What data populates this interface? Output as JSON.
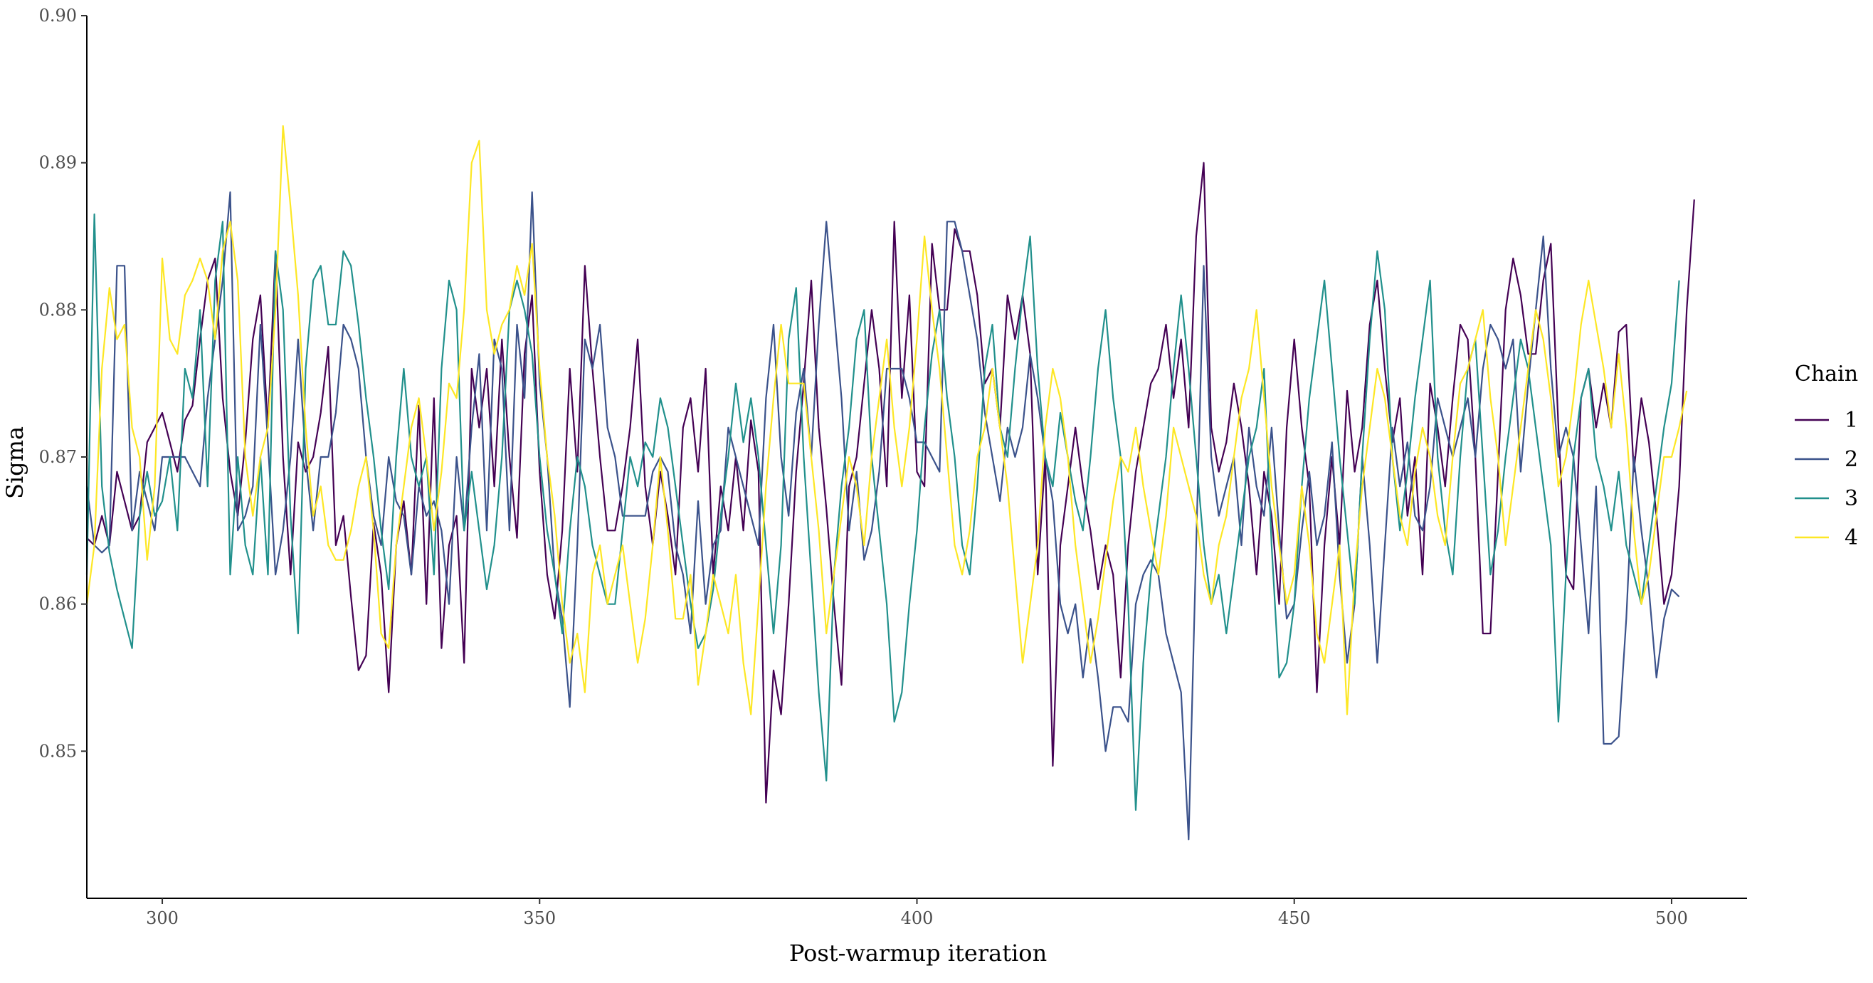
{
  "chart_data": {
    "type": "line",
    "title": "",
    "xlabel": "Post-warmup iteration",
    "ylabel": "Sigma",
    "xlim": [
      290,
      510
    ],
    "ylim": [
      0.84,
      0.9
    ],
    "x_ticks": [
      300,
      350,
      400,
      450,
      500
    ],
    "y_ticks": [
      0.85,
      0.86,
      0.87,
      0.88,
      0.89,
      0.9
    ],
    "x_tick_labels": [
      "300",
      "350",
      "400",
      "450",
      "500"
    ],
    "y_tick_labels": [
      "0.85",
      "0.86",
      "0.87",
      "0.88",
      "0.89",
      "0.90"
    ],
    "grid": false,
    "legend": {
      "title": "Chain",
      "position": "right"
    },
    "x": {
      "start": 290,
      "end": 500
    },
    "series": [
      {
        "name": "1",
        "color": "#440154",
        "values": [
          0.8645,
          0.864,
          0.866,
          0.864,
          0.869,
          0.867,
          0.865,
          0.866,
          0.871,
          0.872,
          0.873,
          0.871,
          0.869,
          0.8725,
          0.8735,
          0.878,
          0.882,
          0.8835,
          0.874,
          0.869,
          0.866,
          0.871,
          0.878,
          0.881,
          0.872,
          0.884,
          0.87,
          0.862,
          0.871,
          0.869,
          0.87,
          0.873,
          0.8775,
          0.864,
          0.866,
          0.8605,
          0.8555,
          0.8565,
          0.8655,
          0.862,
          0.854,
          0.864,
          0.867,
          0.862,
          0.8735,
          0.86,
          0.874,
          0.857,
          0.864,
          0.866,
          0.856,
          0.876,
          0.872,
          0.876,
          0.868,
          0.878,
          0.87,
          0.8645,
          0.877,
          0.881,
          0.869,
          0.862,
          0.859,
          0.865,
          0.876,
          0.869,
          0.883,
          0.876,
          0.87,
          0.865,
          0.865,
          0.868,
          0.872,
          0.878,
          0.868,
          0.864,
          0.869,
          0.866,
          0.862,
          0.872,
          0.874,
          0.869,
          0.876,
          0.862,
          0.868,
          0.865,
          0.87,
          0.865,
          0.8725,
          0.869,
          0.8465,
          0.8555,
          0.8525,
          0.86,
          0.869,
          0.875,
          0.882,
          0.872,
          0.8665,
          0.86,
          0.8545,
          0.868,
          0.87,
          0.875,
          0.88,
          0.876,
          0.868,
          0.886,
          0.874,
          0.881,
          0.869,
          0.868,
          0.8845,
          0.88,
          0.88,
          0.8855,
          0.884,
          0.884,
          0.881,
          0.875,
          0.876,
          0.872,
          0.881,
          0.878,
          0.881,
          0.877,
          0.862,
          0.87,
          0.849,
          0.864,
          0.868,
          0.872,
          0.868,
          0.865,
          0.861,
          0.864,
          0.862,
          0.855,
          0.864,
          0.869,
          0.872,
          0.875,
          0.876,
          0.879,
          0.874,
          0.878,
          0.872,
          0.885,
          0.89,
          0.872,
          0.869,
          0.871,
          0.875,
          0.872,
          0.868,
          0.862,
          0.869,
          0.866,
          0.86,
          0.872,
          0.878,
          0.872,
          0.868,
          0.854,
          0.864,
          0.87,
          0.864,
          0.8745,
          0.869,
          0.872,
          0.879,
          0.882,
          0.876,
          0.871,
          0.874,
          0.866,
          0.87,
          0.862,
          0.875,
          0.872,
          0.868,
          0.874,
          0.879,
          0.878,
          0.87,
          0.858,
          0.858,
          0.869,
          0.88,
          0.8835,
          0.881,
          0.877,
          0.877,
          0.882,
          0.8845,
          0.872,
          0.862,
          0.861,
          0.874,
          0.876,
          0.872,
          0.875,
          0.872,
          0.8785,
          0.879,
          0.869,
          0.874,
          0.871,
          0.866,
          0.86,
          0.862,
          0.868,
          0.88,
          0.8875
        ]
      },
      {
        "name": "2",
        "color": "#3b528b",
        "values": [
          0.868,
          0.864,
          0.8635,
          0.864,
          0.883,
          0.883,
          0.865,
          0.869,
          0.867,
          0.865,
          0.87,
          0.87,
          0.87,
          0.87,
          0.869,
          0.868,
          0.874,
          0.878,
          0.882,
          0.888,
          0.865,
          0.866,
          0.868,
          0.879,
          0.871,
          0.862,
          0.865,
          0.87,
          0.878,
          0.87,
          0.865,
          0.87,
          0.87,
          0.873,
          0.879,
          0.878,
          0.876,
          0.87,
          0.866,
          0.864,
          0.87,
          0.867,
          0.866,
          0.862,
          0.868,
          0.866,
          0.867,
          0.865,
          0.86,
          0.87,
          0.865,
          0.872,
          0.877,
          0.865,
          0.878,
          0.876,
          0.865,
          0.879,
          0.874,
          0.888,
          0.875,
          0.87,
          0.862,
          0.859,
          0.853,
          0.864,
          0.878,
          0.876,
          0.879,
          0.872,
          0.87,
          0.866,
          0.866,
          0.866,
          0.866,
          0.869,
          0.87,
          0.869,
          0.864,
          0.862,
          0.858,
          0.867,
          0.86,
          0.864,
          0.865,
          0.872,
          0.87,
          0.868,
          0.866,
          0.864,
          0.874,
          0.879,
          0.87,
          0.866,
          0.873,
          0.876,
          0.87,
          0.879,
          0.886,
          0.88,
          0.874,
          0.865,
          0.869,
          0.863,
          0.865,
          0.869,
          0.876,
          0.876,
          0.876,
          0.874,
          0.871,
          0.871,
          0.87,
          0.869,
          0.886,
          0.886,
          0.884,
          0.881,
          0.878,
          0.873,
          0.87,
          0.867,
          0.872,
          0.87,
          0.872,
          0.877,
          0.874,
          0.87,
          0.867,
          0.86,
          0.858,
          0.86,
          0.855,
          0.859,
          0.855,
          0.85,
          0.853,
          0.853,
          0.852,
          0.86,
          0.862,
          0.863,
          0.862,
          0.858,
          0.856,
          0.854,
          0.844,
          0.864,
          0.883,
          0.87,
          0.866,
          0.868,
          0.87,
          0.864,
          0.872,
          0.868,
          0.866,
          0.872,
          0.865,
          0.859,
          0.86,
          0.865,
          0.869,
          0.864,
          0.866,
          0.871,
          0.862,
          0.856,
          0.86,
          0.87,
          0.864,
          0.856,
          0.864,
          0.872,
          0.868,
          0.871,
          0.866,
          0.865,
          0.868,
          0.874,
          0.872,
          0.87,
          0.872,
          0.874,
          0.87,
          0.876,
          0.879,
          0.878,
          0.876,
          0.878,
          0.869,
          0.875,
          0.88,
          0.885,
          0.876,
          0.87,
          0.872,
          0.87,
          0.864,
          0.858,
          0.868,
          0.8505,
          0.8505,
          0.851,
          0.859,
          0.87,
          0.865,
          0.861,
          0.855,
          0.859,
          0.861,
          0.8605
        ]
      },
      {
        "name": "3",
        "color": "#21908c",
        "values": [
          0.862,
          0.8865,
          0.868,
          0.8635,
          0.861,
          0.859,
          0.857,
          0.866,
          0.869,
          0.866,
          0.867,
          0.87,
          0.865,
          0.876,
          0.874,
          0.88,
          0.868,
          0.882,
          0.886,
          0.862,
          0.87,
          0.864,
          0.862,
          0.87,
          0.862,
          0.884,
          0.88,
          0.866,
          0.858,
          0.876,
          0.882,
          0.883,
          0.879,
          0.879,
          0.884,
          0.883,
          0.879,
          0.874,
          0.87,
          0.865,
          0.861,
          0.87,
          0.876,
          0.87,
          0.868,
          0.87,
          0.862,
          0.876,
          0.882,
          0.88,
          0.865,
          0.869,
          0.865,
          0.861,
          0.864,
          0.87,
          0.88,
          0.882,
          0.88,
          0.877,
          0.87,
          0.865,
          0.862,
          0.858,
          0.865,
          0.87,
          0.868,
          0.864,
          0.862,
          0.86,
          0.86,
          0.865,
          0.87,
          0.868,
          0.871,
          0.87,
          0.874,
          0.872,
          0.868,
          0.864,
          0.86,
          0.857,
          0.858,
          0.861,
          0.866,
          0.87,
          0.875,
          0.871,
          0.874,
          0.87,
          0.864,
          0.858,
          0.864,
          0.878,
          0.8815,
          0.87,
          0.862,
          0.854,
          0.848,
          0.862,
          0.868,
          0.872,
          0.878,
          0.88,
          0.87,
          0.865,
          0.86,
          0.852,
          0.854,
          0.86,
          0.865,
          0.872,
          0.877,
          0.88,
          0.874,
          0.87,
          0.864,
          0.862,
          0.868,
          0.876,
          0.879,
          0.872,
          0.87,
          0.876,
          0.881,
          0.885,
          0.876,
          0.87,
          0.868,
          0.873,
          0.87,
          0.867,
          0.865,
          0.87,
          0.876,
          0.88,
          0.874,
          0.87,
          0.86,
          0.846,
          0.856,
          0.862,
          0.866,
          0.87,
          0.876,
          0.881,
          0.876,
          0.87,
          0.864,
          0.86,
          0.862,
          0.858,
          0.862,
          0.866,
          0.87,
          0.872,
          0.876,
          0.864,
          0.855,
          0.856,
          0.86,
          0.868,
          0.874,
          0.878,
          0.882,
          0.876,
          0.87,
          0.865,
          0.86,
          0.87,
          0.878,
          0.884,
          0.88,
          0.87,
          0.865,
          0.869,
          0.874,
          0.878,
          0.882,
          0.87,
          0.865,
          0.862,
          0.87,
          0.876,
          0.878,
          0.87,
          0.862,
          0.865,
          0.87,
          0.874,
          0.878,
          0.876,
          0.872,
          0.868,
          0.864,
          0.852,
          0.862,
          0.87,
          0.874,
          0.876,
          0.87,
          0.868,
          0.865,
          0.869,
          0.864,
          0.862,
          0.86,
          0.864,
          0.868,
          0.872,
          0.875,
          0.882
        ]
      },
      {
        "name": "4",
        "color": "#fde725",
        "values": [
          0.86,
          0.864,
          0.876,
          0.8815,
          0.878,
          0.879,
          0.872,
          0.87,
          0.863,
          0.868,
          0.8835,
          0.878,
          0.877,
          0.881,
          0.882,
          0.8835,
          0.882,
          0.878,
          0.884,
          0.886,
          0.882,
          0.87,
          0.866,
          0.87,
          0.872,
          0.88,
          0.8925,
          0.887,
          0.881,
          0.872,
          0.866,
          0.868,
          0.864,
          0.863,
          0.863,
          0.865,
          0.868,
          0.87,
          0.865,
          0.858,
          0.857,
          0.864,
          0.868,
          0.872,
          0.874,
          0.87,
          0.865,
          0.869,
          0.875,
          0.874,
          0.88,
          0.89,
          0.8915,
          0.88,
          0.877,
          0.879,
          0.88,
          0.883,
          0.881,
          0.8845,
          0.876,
          0.87,
          0.866,
          0.86,
          0.856,
          0.858,
          0.854,
          0.862,
          0.864,
          0.86,
          0.862,
          0.864,
          0.86,
          0.856,
          0.859,
          0.864,
          0.87,
          0.865,
          0.859,
          0.859,
          0.862,
          0.8545,
          0.858,
          0.862,
          0.86,
          0.858,
          0.862,
          0.856,
          0.8525,
          0.86,
          0.868,
          0.874,
          0.879,
          0.875,
          0.875,
          0.875,
          0.87,
          0.865,
          0.858,
          0.862,
          0.866,
          0.87,
          0.868,
          0.864,
          0.87,
          0.874,
          0.878,
          0.872,
          0.868,
          0.872,
          0.878,
          0.885,
          0.88,
          0.876,
          0.87,
          0.864,
          0.862,
          0.865,
          0.87,
          0.872,
          0.876,
          0.872,
          0.868,
          0.862,
          0.856,
          0.86,
          0.864,
          0.872,
          0.876,
          0.874,
          0.87,
          0.864,
          0.86,
          0.856,
          0.859,
          0.863,
          0.867,
          0.87,
          0.869,
          0.872,
          0.868,
          0.865,
          0.862,
          0.866,
          0.872,
          0.87,
          0.868,
          0.866,
          0.862,
          0.86,
          0.864,
          0.866,
          0.87,
          0.874,
          0.876,
          0.88,
          0.874,
          0.868,
          0.864,
          0.86,
          0.862,
          0.868,
          0.864,
          0.858,
          0.856,
          0.86,
          0.864,
          0.8525,
          0.862,
          0.868,
          0.872,
          0.876,
          0.874,
          0.87,
          0.866,
          0.864,
          0.869,
          0.872,
          0.87,
          0.866,
          0.864,
          0.87,
          0.875,
          0.876,
          0.878,
          0.88,
          0.874,
          0.87,
          0.864,
          0.868,
          0.872,
          0.876,
          0.88,
          0.878,
          0.874,
          0.868,
          0.87,
          0.874,
          0.879,
          0.882,
          0.879,
          0.876,
          0.872,
          0.877,
          0.872,
          0.865,
          0.86,
          0.862,
          0.866,
          0.87,
          0.87,
          0.872,
          0.8745
        ]
      }
    ]
  }
}
